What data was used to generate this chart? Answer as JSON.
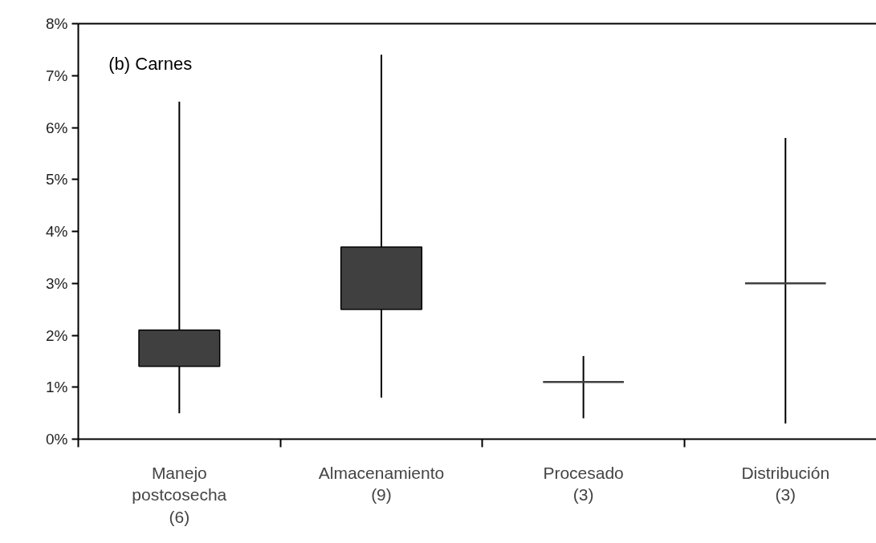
{
  "chart_data": {
    "type": "box",
    "categories": [
      "Manejo\npostcosecha\n(6)",
      "Almacenamiento\n(9)",
      "Procesado\n(3)",
      "Distribución\n(3)"
    ],
    "boxes": [
      {
        "low": 0.5,
        "q1": 1.4,
        "median": null,
        "q3": 2.1,
        "high": 6.5
      },
      {
        "low": 0.8,
        "q1": 2.5,
        "median": null,
        "q3": 3.7,
        "high": 7.4
      },
      {
        "low": 0.4,
        "q1": 1.1,
        "median": 1.1,
        "q3": 1.1,
        "high": 1.6
      },
      {
        "low": 0.3,
        "q1": 3.0,
        "median": 3.0,
        "q3": 3.0,
        "high": 5.8
      }
    ],
    "color": "#404040",
    "ylim": [
      0,
      8
    ],
    "yticks": [
      {
        "value": 0,
        "label": "0%"
      },
      {
        "value": 1,
        "label": "1%"
      },
      {
        "value": 2,
        "label": "2%"
      },
      {
        "value": 3,
        "label": "3%"
      },
      {
        "value": 4,
        "label": "4%"
      },
      {
        "value": 5,
        "label": "5%"
      },
      {
        "value": 6,
        "label": "6%"
      },
      {
        "value": 7,
        "label": "7%"
      },
      {
        "value": 8,
        "label": "8%"
      }
    ],
    "grid": false,
    "annotations": [
      "(b) Carnes"
    ]
  }
}
